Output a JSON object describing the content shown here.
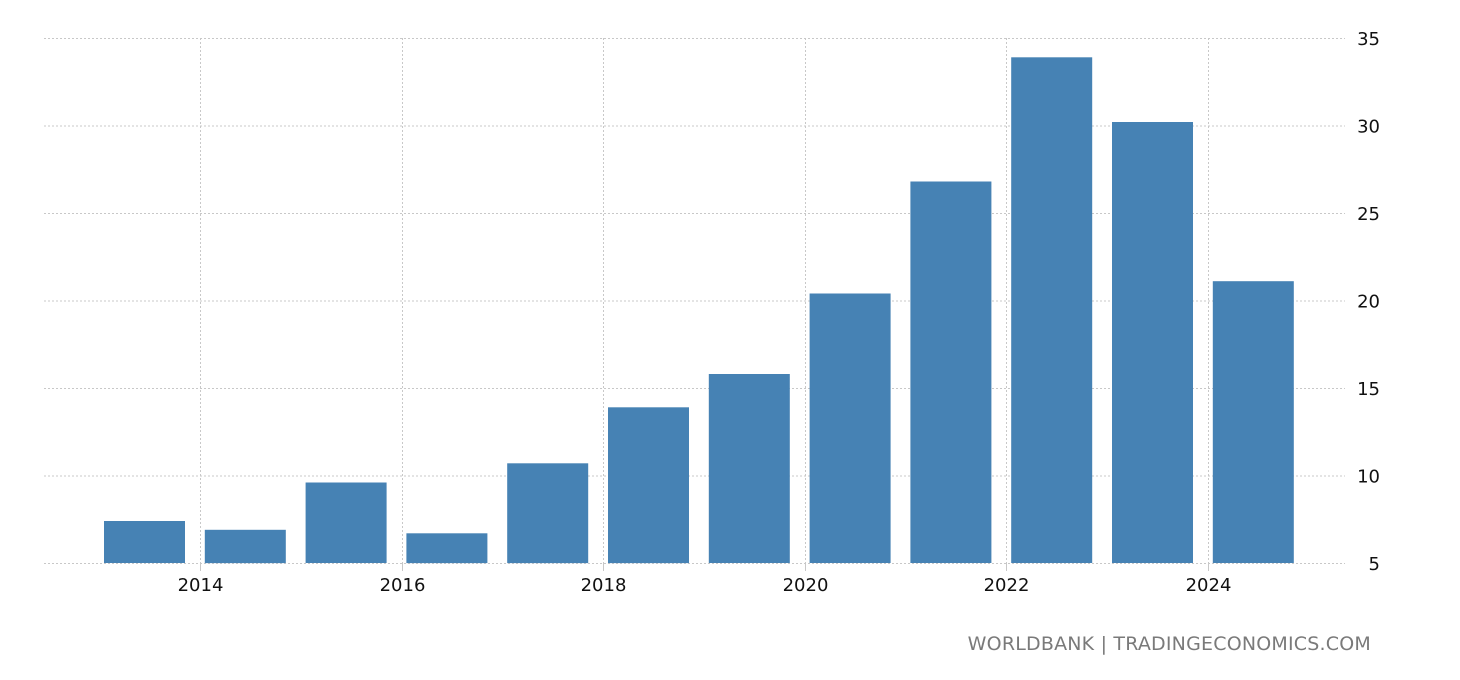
{
  "chart_data": {
    "type": "bar",
    "categories": [
      "2013",
      "2014",
      "2015",
      "2016",
      "2017",
      "2018",
      "2019",
      "2020",
      "2021",
      "2022",
      "2023",
      "2024"
    ],
    "values": [
      7.4,
      6.9,
      9.6,
      6.7,
      10.7,
      13.9,
      15.8,
      20.4,
      26.8,
      33.9,
      30.2,
      21.1
    ],
    "x_tick_labels": [
      "2014",
      "2016",
      "2018",
      "2020",
      "2022",
      "2024"
    ],
    "y_tick_labels": [
      "5",
      "10",
      "15",
      "20",
      "25",
      "30",
      "35"
    ],
    "ylim": [
      5,
      35
    ],
    "y_axis_position": "right",
    "grid": true,
    "bar_color": "#4682b4",
    "title": "",
    "xlabel": "",
    "ylabel": ""
  },
  "source": "WORLDBANK | TRADINGECONOMICS.COM"
}
